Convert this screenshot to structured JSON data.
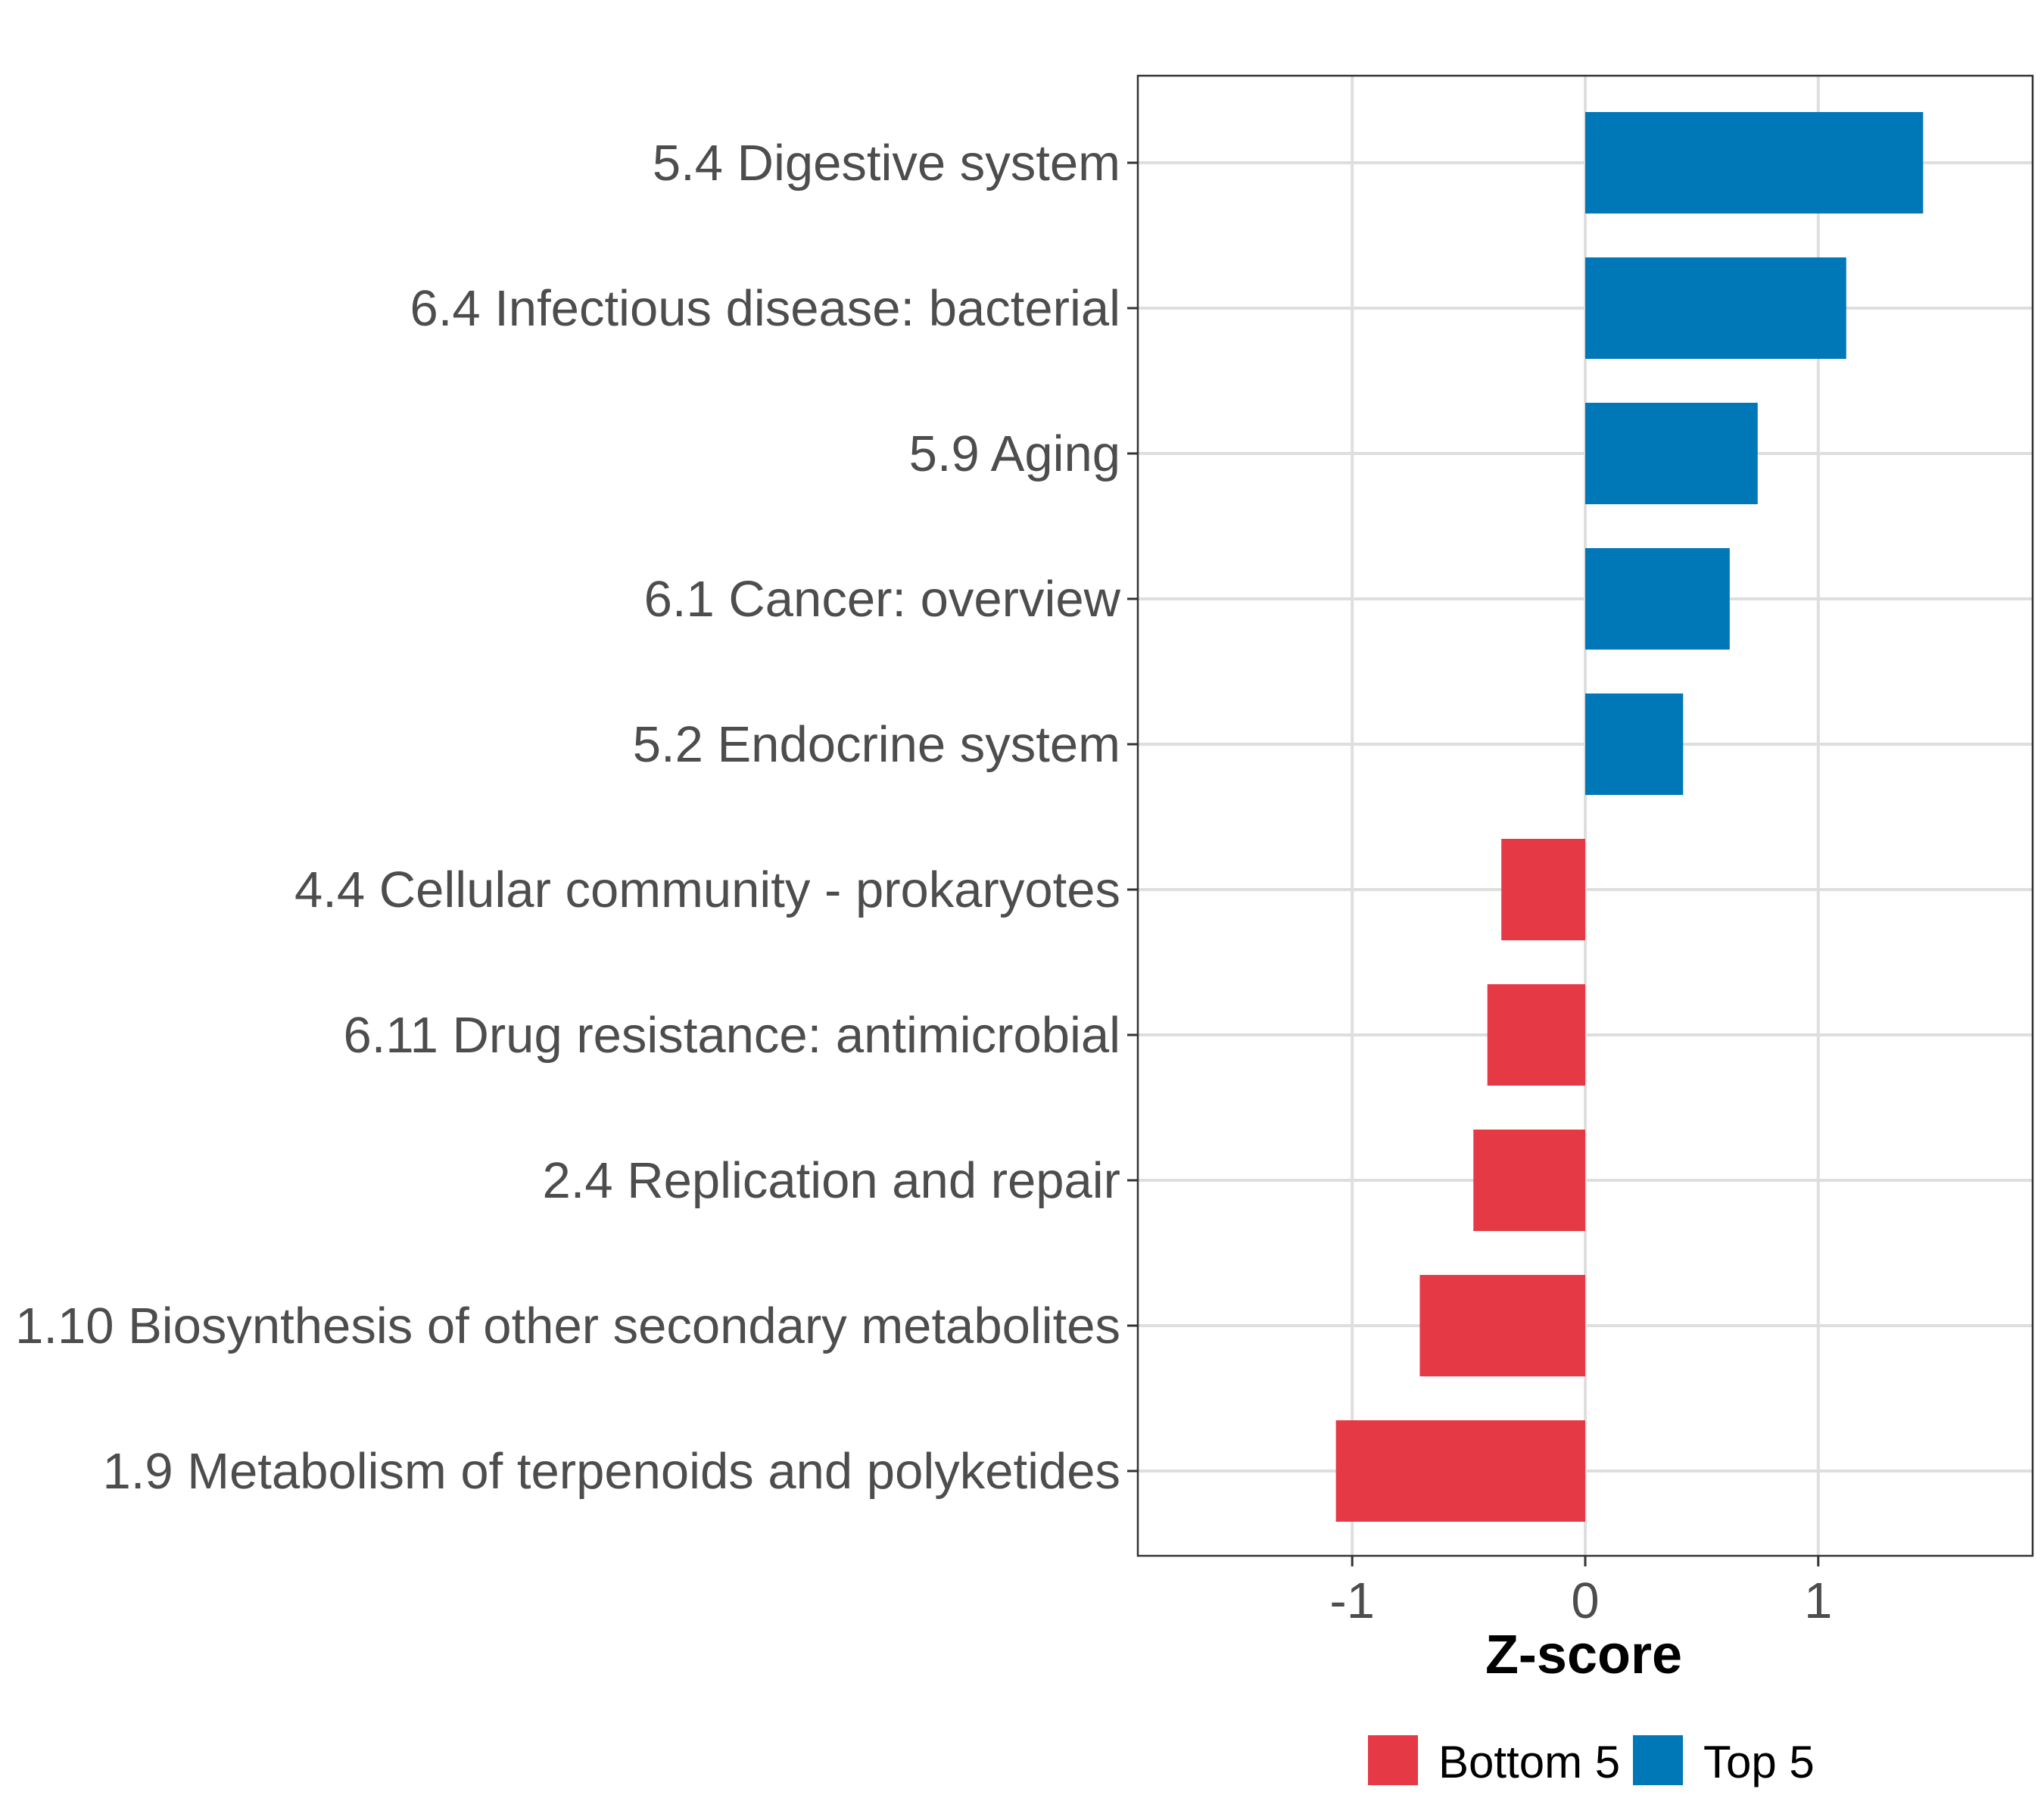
{
  "chart_data": {
    "type": "bar",
    "orientation": "horizontal",
    "title": "",
    "xlabel": "Z-score",
    "ylabel": "",
    "xlim": [
      -1.92,
      1.92
    ],
    "xticks": [
      -1,
      0,
      1
    ],
    "xtick_labels": [
      "-1",
      "0",
      "1"
    ],
    "grid": true,
    "legend_position": "bottom",
    "groups": [
      {
        "name": "Bottom 5",
        "color": "#e63946"
      },
      {
        "name": "Top 5",
        "color": "#0077b6"
      }
    ],
    "categories": [
      "5.4 Digestive system",
      "6.4 Infectious disease: bacterial",
      "5.9 Aging",
      "6.1 Cancer: overview",
      "5.2 Endocrine system",
      "4.4 Cellular community - prokaryotes",
      "6.11 Drug resistance: antimicrobial",
      "2.4 Replication and repair",
      "1.10 Biosynthesis of other secondary metabolites",
      "1.9 Metabolism of terpenoids and polyketides"
    ],
    "values": [
      1.45,
      1.12,
      0.74,
      0.62,
      0.42,
      -0.36,
      -0.42,
      -0.48,
      -0.71,
      -1.07
    ],
    "group_of": [
      "Top 5",
      "Top 5",
      "Top 5",
      "Top 5",
      "Top 5",
      "Bottom 5",
      "Bottom 5",
      "Bottom 5",
      "Bottom 5",
      "Bottom 5"
    ]
  }
}
